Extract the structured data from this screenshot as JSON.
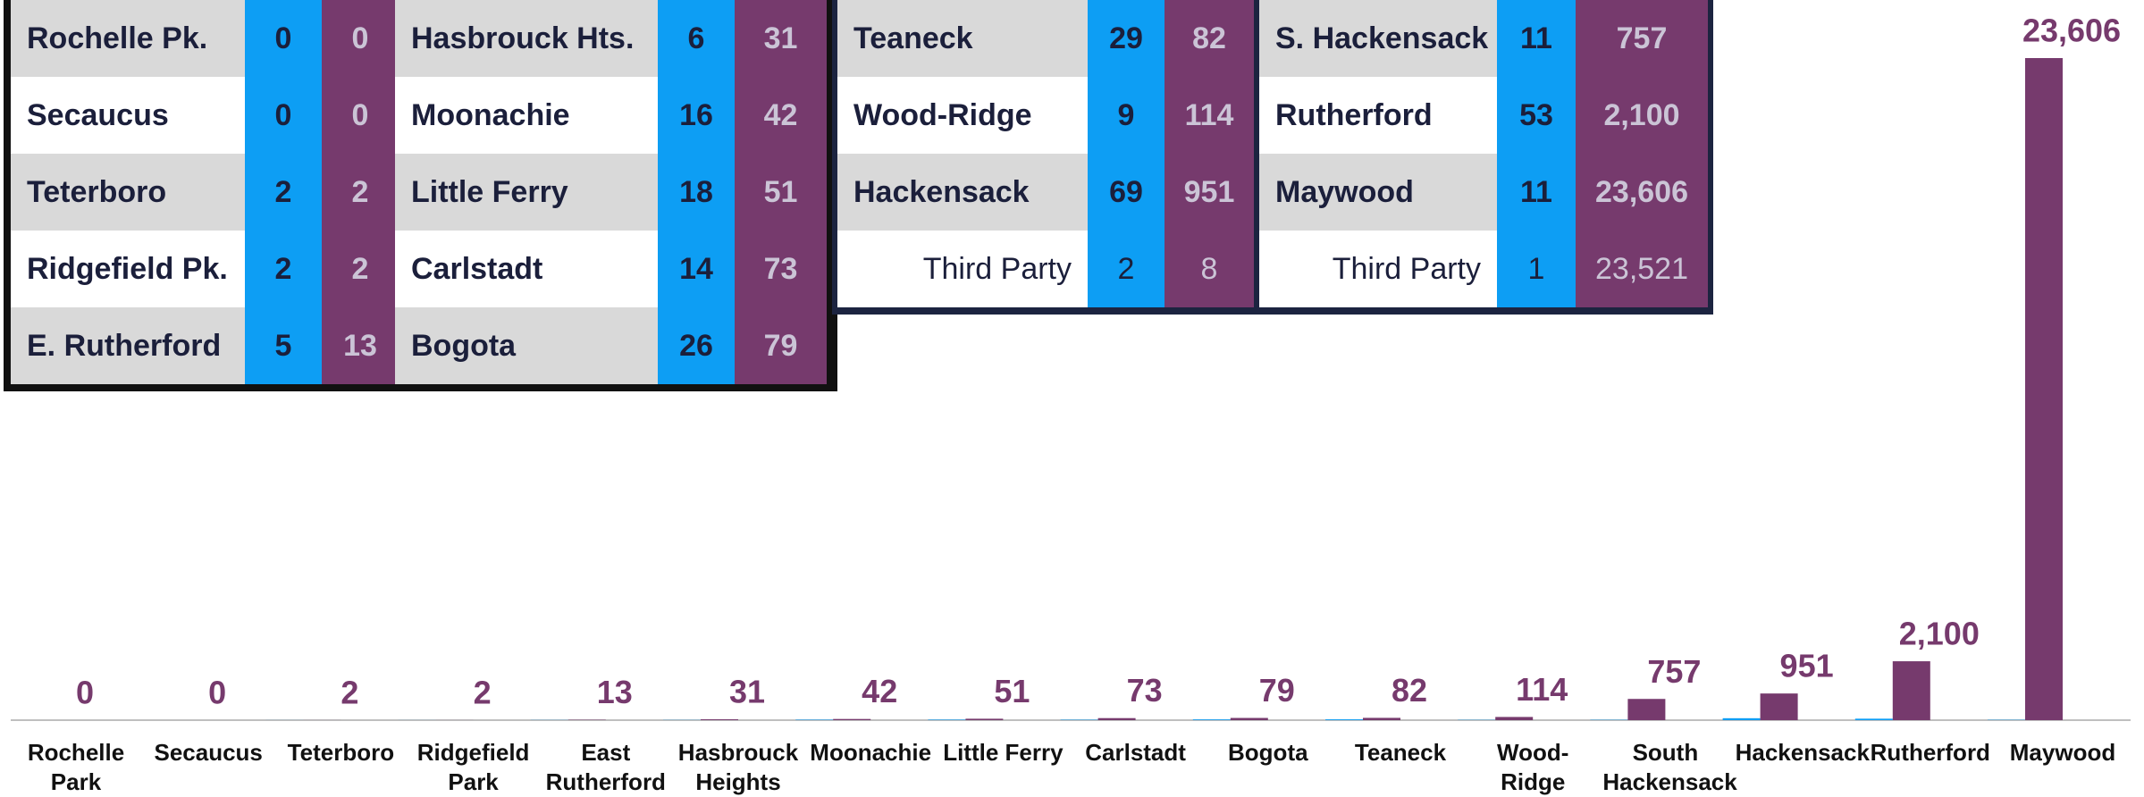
{
  "tables": [
    {
      "rows": [
        {
          "name": "Rochelle Pk.",
          "a": "0",
          "b": "0"
        },
        {
          "name": "Secaucus",
          "a": "0",
          "b": "0"
        },
        {
          "name": "Teterboro",
          "a": "2",
          "b": "2"
        },
        {
          "name": "Ridgefield Pk.",
          "a": "2",
          "b": "2"
        },
        {
          "name": "E. Rutherford",
          "a": "5",
          "b": "13"
        }
      ]
    },
    {
      "rows": [
        {
          "name": "Hasbrouck Hts.",
          "a": "6",
          "b": "31"
        },
        {
          "name": "Moonachie",
          "a": "16",
          "b": "42"
        },
        {
          "name": "Little Ferry",
          "a": "18",
          "b": "51"
        },
        {
          "name": "Carlstadt",
          "a": "14",
          "b": "73"
        },
        {
          "name": "Bogota",
          "a": "26",
          "b": "79"
        }
      ]
    },
    {
      "rows": [
        {
          "name": "Teaneck",
          "a": "29",
          "b": "82"
        },
        {
          "name": "Wood-Ridge",
          "a": "9",
          "b": "114"
        },
        {
          "name": "Hackensack",
          "a": "69",
          "b": "951"
        },
        {
          "name": "Third Party",
          "a": "2",
          "b": "8"
        }
      ]
    },
    {
      "rows": [
        {
          "name": "S. Hackensack",
          "a": "11",
          "b": "757"
        },
        {
          "name": "Rutherford",
          "a": "53",
          "b": "2,100"
        },
        {
          "name": "Maywood",
          "a": "11",
          "b": "23,606"
        },
        {
          "name": "Third Party",
          "a": "1",
          "b": "23,521"
        }
      ]
    }
  ],
  "chart_data": {
    "type": "bar",
    "categories": [
      "Rochelle Park",
      "Secaucus",
      "Teterboro",
      "Ridgefield Park",
      "East Rutherford",
      "Hasbrouck Heights",
      "Moonachie",
      "Little Ferry",
      "Carlstadt",
      "Bogota",
      "Teaneck",
      "Wood-Ridge",
      "South Hackensack",
      "Hackensack",
      "Rutherford",
      "Maywood"
    ],
    "series": [
      {
        "color": "#0d9ef4",
        "values": [
          0,
          0,
          2,
          2,
          5,
          6,
          16,
          18,
          14,
          26,
          29,
          9,
          11,
          69,
          53,
          11
        ]
      },
      {
        "color": "#763a6d",
        "values": [
          0,
          0,
          2,
          2,
          13,
          31,
          42,
          51,
          73,
          79,
          82,
          114,
          757,
          951,
          2100,
          23606
        ],
        "value_labels": [
          "0",
          "0",
          "2",
          "2",
          "13",
          "31",
          "42",
          "51",
          "73",
          "79",
          "82",
          "114",
          "757",
          "951",
          "2,100",
          "23,606"
        ]
      }
    ],
    "ylim": [
      0,
      23606
    ]
  }
}
